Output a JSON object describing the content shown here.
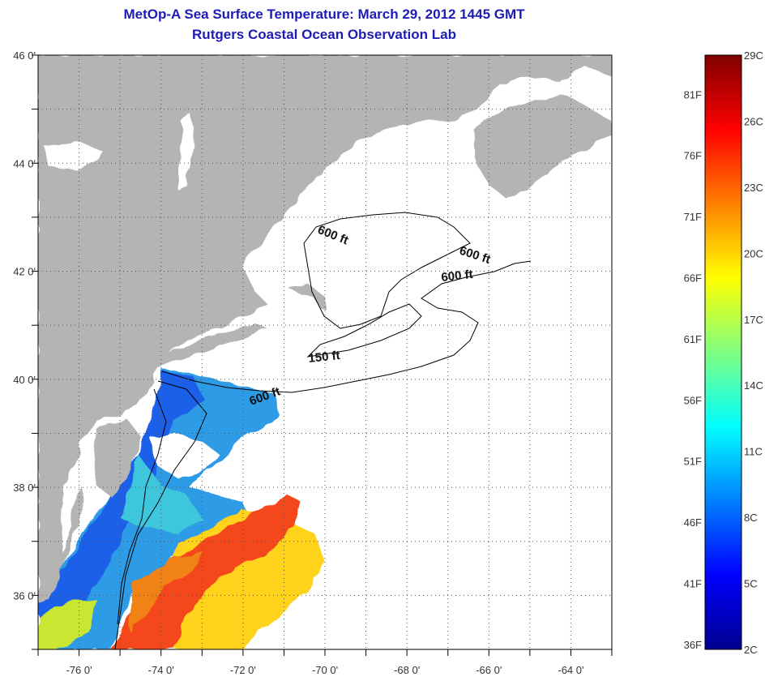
{
  "title": {
    "line1": "MetOp-A Sea Surface Temperature:  March 29, 2012 1445 GMT",
    "line2": "Rutgers Coastal Ocean Observation Lab"
  },
  "map": {
    "lon_range": [
      -77,
      -63
    ],
    "lat_range": [
      35,
      46
    ],
    "lon_ticks": [
      {
        "value": -76,
        "label": "-76 0'"
      },
      {
        "value": -74,
        "label": "-74 0'"
      },
      {
        "value": -72,
        "label": "-72 0'"
      },
      {
        "value": -70,
        "label": "-70 0'"
      },
      {
        "value": -68,
        "label": "-68 0'"
      },
      {
        "value": -66,
        "label": "-66 0'"
      },
      {
        "value": -64,
        "label": "-64 0'"
      }
    ],
    "lat_ticks": [
      {
        "value": 46,
        "label": "46 0'"
      },
      {
        "value": 44,
        "label": "44 0'"
      },
      {
        "value": 42,
        "label": "42 0'"
      },
      {
        "value": 40,
        "label": "40 0'"
      },
      {
        "value": 38,
        "label": "38 0'"
      },
      {
        "value": 36,
        "label": "36 0'"
      }
    ],
    "grid": "dotted",
    "land_color": "#b4b4b4",
    "no_data_color": "#ffffff",
    "contour_labels": [
      {
        "text": "600 ft"
      },
      {
        "text": "600 ft"
      },
      {
        "text": "600 ft"
      },
      {
        "text": "150 ft"
      },
      {
        "text": "600 ft"
      }
    ]
  },
  "colorbar": {
    "colors": [
      "#00008f",
      "#0000ff",
      "#0080ff",
      "#00ffff",
      "#80ff80",
      "#ffff00",
      "#ff8000",
      "#ff0000",
      "#800000"
    ],
    "range_c": [
      2,
      29
    ],
    "celsius_labels": [
      {
        "value": 29,
        "label": "29C"
      },
      {
        "value": 26,
        "label": "26C"
      },
      {
        "value": 23,
        "label": "23C"
      },
      {
        "value": 20,
        "label": "20C"
      },
      {
        "value": 17,
        "label": "17C"
      },
      {
        "value": 14,
        "label": "14C"
      },
      {
        "value": 11,
        "label": "11C"
      },
      {
        "value": 8,
        "label": "8C"
      },
      {
        "value": 5,
        "label": "5C"
      },
      {
        "value": 2,
        "label": "2C"
      }
    ],
    "fahrenheit_labels": [
      {
        "value": 81,
        "label": "81F"
      },
      {
        "value": 76,
        "label": "76F"
      },
      {
        "value": 71,
        "label": "71F"
      },
      {
        "value": 66,
        "label": "66F"
      },
      {
        "value": 61,
        "label": "61F"
      },
      {
        "value": 56,
        "label": "56F"
      },
      {
        "value": 51,
        "label": "51F"
      },
      {
        "value": 46,
        "label": "46F"
      },
      {
        "value": 41,
        "label": "41F"
      },
      {
        "value": 36,
        "label": "36F"
      }
    ]
  }
}
